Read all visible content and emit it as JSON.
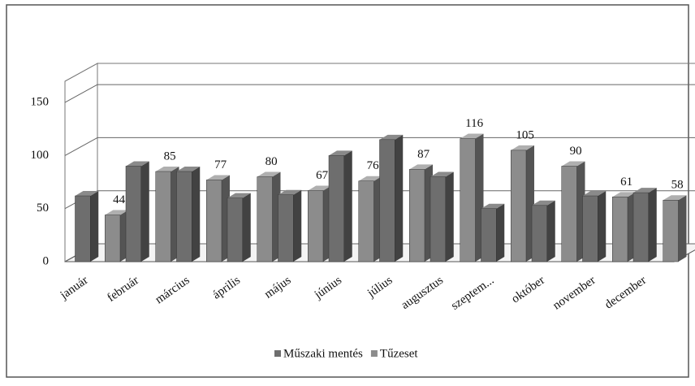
{
  "chart_data": {
    "type": "bar",
    "categories": [
      "január",
      "február",
      "március",
      "április",
      "május",
      "június",
      "július",
      "augusztus",
      "szeptem...",
      "október",
      "november",
      "december"
    ],
    "series": [
      {
        "name": "Műszaki mentés",
        "color": "#6e6e6e",
        "values": [
          62,
          90,
          85,
          60,
          63,
          100,
          115,
          80,
          50,
          53,
          62,
          65
        ]
      },
      {
        "name": "Tűzeset",
        "color": "#8c8c8c",
        "values": [
          44,
          85,
          77,
          80,
          67,
          76,
          87,
          116,
          105,
          90,
          61,
          58
        ]
      }
    ],
    "ylim": [
      0,
      170
    ],
    "yticks": [
      0,
      50,
      100,
      150
    ],
    "grid": true,
    "legend": "bottom"
  }
}
